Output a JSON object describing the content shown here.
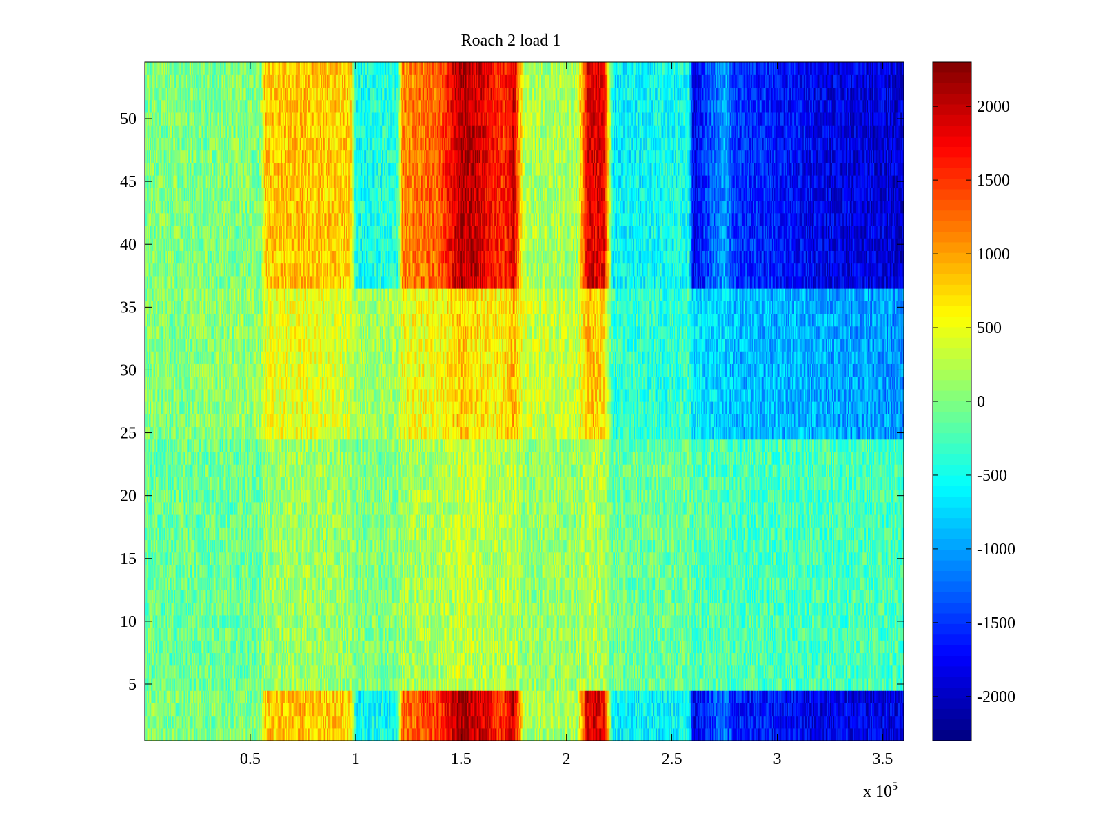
{
  "chart_data": {
    "type": "heatmap",
    "title": "Roach 2 load 1",
    "xlabel": "",
    "ylabel": "",
    "x_exponent_label": "x 10",
    "x_exponent_power": "5",
    "xlim": [
      0,
      3.6
    ],
    "ylim": [
      0.5,
      54.5
    ],
    "x_ticks": [
      0.5,
      1,
      1.5,
      2,
      2.5,
      3,
      3.5
    ],
    "x_tick_labels": [
      "0.5",
      "1",
      "1.5",
      "2",
      "2.5",
      "3",
      "3.5"
    ],
    "y_ticks": [
      5,
      10,
      15,
      20,
      25,
      30,
      35,
      40,
      45,
      50
    ],
    "y_tick_labels": [
      "5",
      "10",
      "15",
      "20",
      "25",
      "30",
      "35",
      "40",
      "45",
      "50"
    ],
    "rows": 54,
    "colormap": "jet",
    "clim": [
      -2300,
      2300
    ],
    "colorbar_ticks": [
      2000,
      1500,
      1000,
      500,
      0,
      -500,
      -1000,
      -1500,
      -2000
    ],
    "colorbar_tick_labels": [
      "2000",
      "1500",
      "1000",
      "500",
      "0",
      "-500",
      "-1000",
      "-1500",
      "-2000"
    ],
    "column_profile": {
      "x": [
        0.0,
        0.3,
        0.55,
        0.57,
        0.75,
        0.98,
        1.0,
        1.2,
        1.22,
        1.4,
        1.5,
        1.6,
        1.7,
        1.75,
        1.8,
        2.05,
        2.1,
        2.18,
        2.22,
        2.5,
        2.58,
        2.6,
        2.75,
        2.8,
        3.0,
        3.2,
        3.6
      ],
      "top": [
        0,
        0,
        0,
        800,
        850,
        750,
        -500,
        -400,
        1100,
        1300,
        2100,
        1900,
        1500,
        1900,
        200,
        150,
        1900,
        1800,
        -600,
        -500,
        -500,
        -1800,
        -1000,
        -1500,
        -1600,
        -1800,
        -1900
      ],
      "mid": [
        0,
        50,
        100,
        450,
        500,
        350,
        150,
        150,
        500,
        550,
        800,
        650,
        600,
        900,
        350,
        300,
        850,
        700,
        -350,
        -400,
        -300,
        -700,
        -750,
        -850,
        -900,
        -950,
        -1050
      ],
      "low": [
        -100,
        -100,
        -80,
        100,
        150,
        100,
        0,
        0,
        150,
        200,
        300,
        250,
        200,
        250,
        100,
        100,
        250,
        200,
        -100,
        -100,
        -100,
        -200,
        -200,
        -250,
        -250,
        -250,
        -250
      ],
      "bottom": [
        0,
        0,
        0,
        800,
        850,
        750,
        -600,
        -500,
        1200,
        1500,
        2200,
        1900,
        1500,
        2000,
        200,
        150,
        1900,
        1800,
        -600,
        -600,
        -500,
        -1800,
        -1200,
        -1600,
        -1700,
        -1800,
        -1800
      ]
    },
    "row_weights": [
      {
        "row_from": 1,
        "row_to": 4,
        "profile": "bottom"
      },
      {
        "row_from": 5,
        "row_to": 24,
        "profile": "low"
      },
      {
        "row_from": 25,
        "row_to": 36,
        "profile": "mid"
      },
      {
        "row_from": 37,
        "row_to": 54,
        "profile": "top"
      }
    ]
  }
}
